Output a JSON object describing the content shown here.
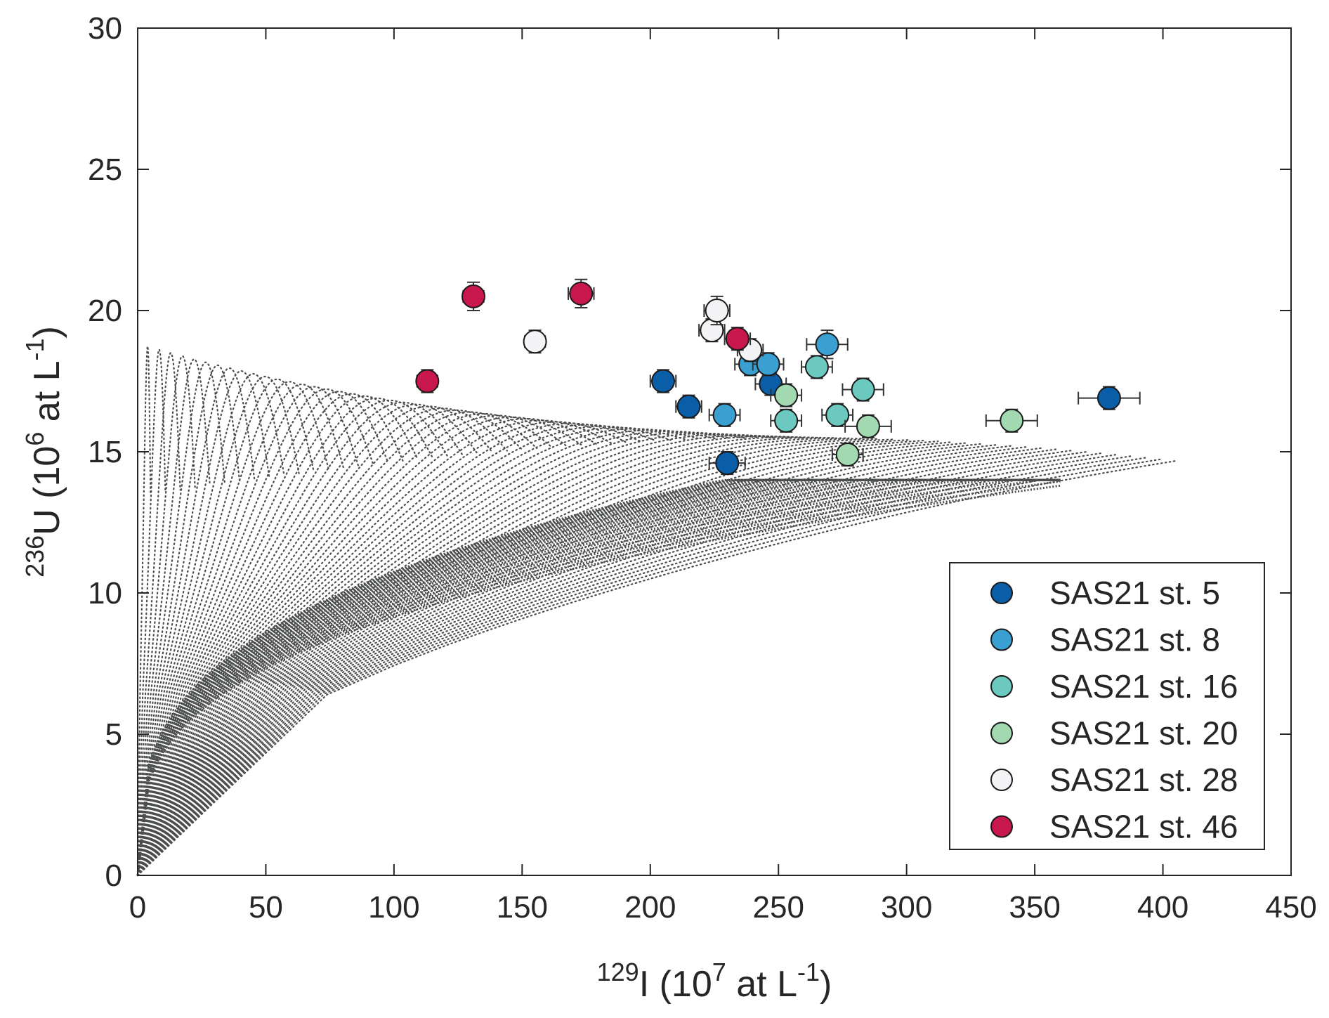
{
  "chart_data": {
    "type": "scatter",
    "xlabel": {
      "sup": "129",
      "main": "I (10",
      "sup2": "7",
      "main2": " at L",
      "sup3": "-1",
      "end": ")"
    },
    "ylabel": {
      "sup": "236",
      "main": "U (10",
      "sup2": "6",
      "main2": " at L",
      "sup3": "-1",
      "end": ")"
    },
    "xlim": [
      0,
      450
    ],
    "ylim": [
      0,
      30
    ],
    "xticks": [
      "0",
      "50",
      "100",
      "150",
      "200",
      "250",
      "300",
      "350",
      "400",
      "450"
    ],
    "yticks": [
      "0",
      "5",
      "10",
      "15",
      "20",
      "25",
      "30"
    ],
    "grid": false,
    "legend_position": "bottom-right",
    "mixing_cloud_color": "#4d4f4f",
    "series": [
      {
        "name": "SAS21 st. 5",
        "color": "#0a5ea8",
        "points": [
          {
            "x": 205,
            "y": 17.5,
            "xerr": 5,
            "yerr": 0.4
          },
          {
            "x": 215,
            "y": 16.6,
            "xerr": 5,
            "yerr": 0.4
          },
          {
            "x": 230,
            "y": 14.6,
            "xerr": 7,
            "yerr": 0.4
          },
          {
            "x": 247,
            "y": 17.4,
            "xerr": 6,
            "yerr": 0.4
          },
          {
            "x": 379,
            "y": 16.9,
            "xerr": 12,
            "yerr": 0.4
          }
        ]
      },
      {
        "name": "SAS21 st. 8",
        "color": "#3a9fd1",
        "points": [
          {
            "x": 229,
            "y": 16.3,
            "xerr": 6,
            "yerr": 0.4
          },
          {
            "x": 239,
            "y": 18.1,
            "xerr": 6,
            "yerr": 0.4
          },
          {
            "x": 246,
            "y": 18.1,
            "xerr": 6,
            "yerr": 0.4
          },
          {
            "x": 269,
            "y": 18.8,
            "xerr": 8,
            "yerr": 0.5
          }
        ]
      },
      {
        "name": "SAS21 st. 16",
        "color": "#6cc9bf",
        "points": [
          {
            "x": 253,
            "y": 16.1,
            "xerr": 6,
            "yerr": 0.4
          },
          {
            "x": 265,
            "y": 18.0,
            "xerr": 6,
            "yerr": 0.4
          },
          {
            "x": 273,
            "y": 16.3,
            "xerr": 6,
            "yerr": 0.4
          },
          {
            "x": 283,
            "y": 17.2,
            "xerr": 8,
            "yerr": 0.4
          }
        ]
      },
      {
        "name": "SAS21 st. 20",
        "color": "#a3d9b1",
        "points": [
          {
            "x": 253,
            "y": 17.0,
            "xerr": 6,
            "yerr": 0.4
          },
          {
            "x": 277,
            "y": 14.9,
            "xerr": 6,
            "yerr": 0.4
          },
          {
            "x": 285,
            "y": 15.9,
            "xerr": 9,
            "yerr": 0.4
          },
          {
            "x": 341,
            "y": 16.1,
            "xerr": 10,
            "yerr": 0.4
          }
        ]
      },
      {
        "name": "SAS21 st. 28",
        "color": "#f4f4f6",
        "points": [
          {
            "x": 155,
            "y": 18.9,
            "xerr": 4,
            "yerr": 0.4
          },
          {
            "x": 224,
            "y": 19.3,
            "xerr": 5,
            "yerr": 0.4
          },
          {
            "x": 226,
            "y": 20.0,
            "xerr": 5,
            "yerr": 0.5
          },
          {
            "x": 239,
            "y": 18.6,
            "xerr": 5,
            "yerr": 0.4
          }
        ]
      },
      {
        "name": "SAS21 st. 46",
        "color": "#c8174d",
        "points": [
          {
            "x": 113,
            "y": 17.5,
            "xerr": 4,
            "yerr": 0.4
          },
          {
            "x": 131,
            "y": 20.5,
            "xerr": 4,
            "yerr": 0.5
          },
          {
            "x": 173,
            "y": 20.6,
            "xerr": 5,
            "yerr": 0.5
          },
          {
            "x": 234,
            "y": 19.0,
            "xerr": 5,
            "yerr": 0.4
          }
        ]
      }
    ]
  }
}
